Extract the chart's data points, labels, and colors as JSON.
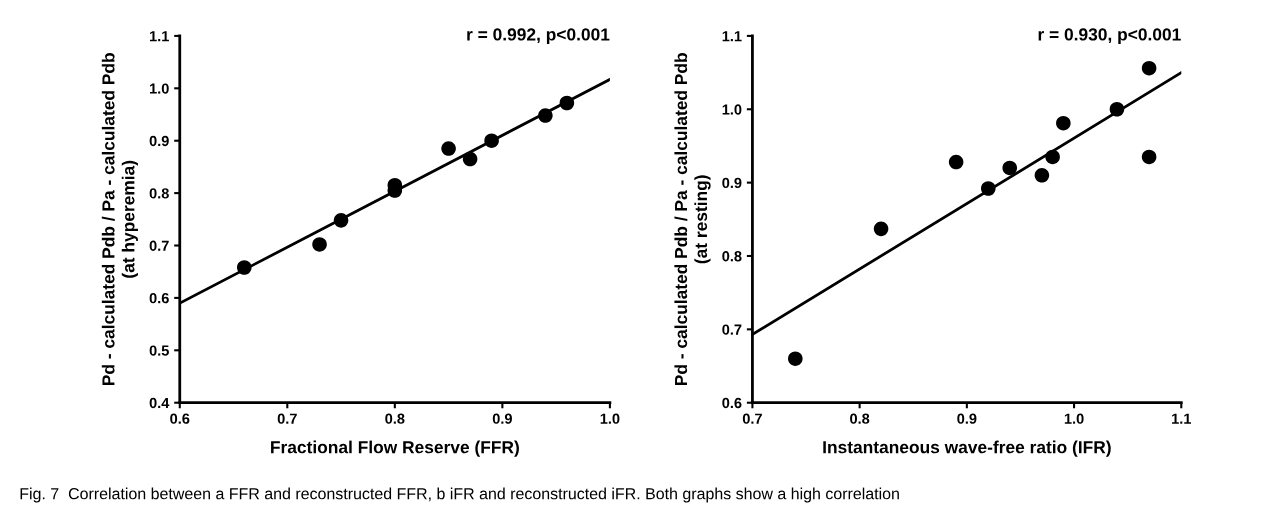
{
  "chart_data": [
    {
      "type": "scatter",
      "xlabel": "Fractional Flow Reserve (FFR)",
      "ylabel": "Pd - calculated Pdb / Pa - calculated Pdb\n(at hyperemia)",
      "xlim": [
        0.6,
        1.0
      ],
      "xticks": [
        {
          "value": 0.6,
          "label": "0.6"
        },
        {
          "value": 0.7,
          "label": "0.7"
        },
        {
          "value": 0.8,
          "label": "0.8"
        },
        {
          "value": 0.9,
          "label": "0.9"
        },
        {
          "value": 1.0,
          "label": "1.0"
        }
      ],
      "ylim": [
        0.4,
        1.1
      ],
      "yticks": [
        {
          "value": 0.4,
          "label": "0.4"
        },
        {
          "value": 0.5,
          "label": "0.5"
        },
        {
          "value": 0.6,
          "label": "0.6"
        },
        {
          "value": 0.7,
          "label": "0.7"
        },
        {
          "value": 0.8,
          "label": "0.8"
        },
        {
          "value": 0.9,
          "label": "0.9"
        },
        {
          "value": 1.0,
          "label": "1.0"
        },
        {
          "value": 1.1,
          "label": "1.1"
        }
      ],
      "grid": false,
      "legend": false,
      "series": [
        {
          "type": "scatter",
          "color": "#000000",
          "marker": "circle",
          "x": [
            0.66,
            0.73,
            0.75,
            0.8,
            0.8,
            0.85,
            0.87,
            0.89,
            0.94,
            0.96
          ],
          "values": [
            0.658,
            0.702,
            0.748,
            0.815,
            0.805,
            0.885,
            0.865,
            0.9,
            0.948,
            0.972
          ]
        },
        {
          "type": "line",
          "color": "#000000",
          "marker": "none",
          "line_style": "solid",
          "x": [
            0.6,
            1.0
          ],
          "values": [
            0.59,
            1.017
          ]
        }
      ],
      "annotations": [
        "r = 0.992, p<0.001",
        "Fig. 7  Correlation between a FFR and reconstructed FFR, b iFR and reconstructed iFR. Both graphs show a high correlation"
      ]
    },
    {
      "type": "scatter",
      "xlabel": "Instantaneous wave-free ratio (IFR)",
      "ylabel": "Pd - calculated Pdb / Pa - calculated Pdb\n(at resting)",
      "xlim": [
        0.7,
        1.1
      ],
      "xticks": [
        {
          "value": 0.7,
          "label": "0.7"
        },
        {
          "value": 0.8,
          "label": "0.8"
        },
        {
          "value": 0.9,
          "label": "0.9"
        },
        {
          "value": 1.0,
          "label": "1.0"
        },
        {
          "value": 1.1,
          "label": "1.1"
        }
      ],
      "ylim": [
        0.6,
        1.1
      ],
      "yticks": [
        {
          "value": 0.6,
          "label": "0.6"
        },
        {
          "value": 0.7,
          "label": "0.7"
        },
        {
          "value": 0.8,
          "label": "0.8"
        },
        {
          "value": 0.9,
          "label": "0.9"
        },
        {
          "value": 1.0,
          "label": "1.0"
        },
        {
          "value": 1.1,
          "label": "1.1"
        }
      ],
      "grid": false,
      "legend": false,
      "series": [
        {
          "type": "scatter",
          "color": "#000000",
          "marker": "circle",
          "x": [
            0.74,
            0.82,
            0.89,
            0.92,
            0.94,
            0.97,
            0.98,
            0.99,
            1.04,
            1.07,
            1.07
          ],
          "values": [
            0.66,
            0.837,
            0.928,
            0.892,
            0.92,
            0.91,
            0.935,
            0.981,
            1.0,
            1.056,
            0.935
          ]
        },
        {
          "type": "line",
          "color": "#000000",
          "marker": "none",
          "line_style": "solid",
          "x": [
            0.7,
            1.1
          ],
          "values": [
            0.693,
            1.05
          ]
        }
      ],
      "annotations": [
        "r = 0.930, p<0.001"
      ]
    }
  ]
}
